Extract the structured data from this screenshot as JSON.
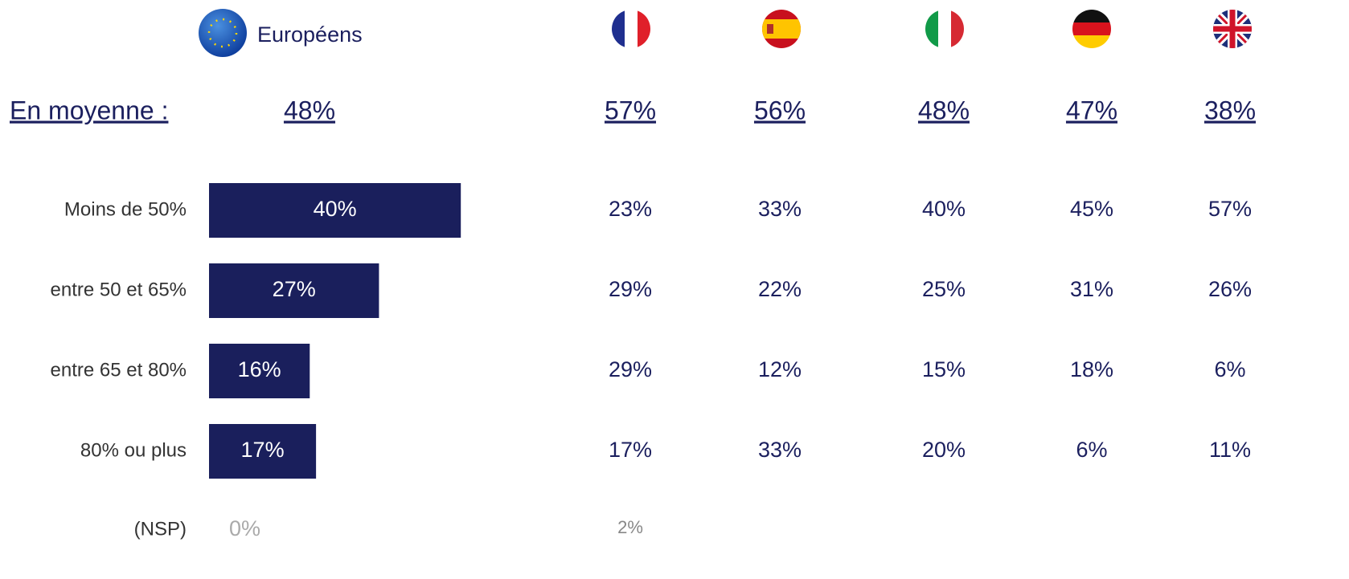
{
  "chart_data": {
    "type": "bar",
    "series_name": "Européens",
    "average_title": "En moyenne :",
    "average": 48,
    "average_label": "48%",
    "categories": [
      "Moins de 50%",
      "entre 50 et 65%",
      "entre 65 et 80%",
      "80% ou plus",
      "(NSP)"
    ],
    "values": [
      40,
      27,
      16,
      17,
      0
    ],
    "value_labels": [
      "40%",
      "27%",
      "16%",
      "17%",
      "0%"
    ],
    "color": "#1a1f5c"
  },
  "countries": [
    {
      "average": "57%",
      "rows": [
        "23%",
        "29%",
        "29%",
        "17%"
      ],
      "nsp": "2%"
    },
    {
      "average": "56%",
      "rows": [
        "33%",
        "22%",
        "12%",
        "33%"
      ]
    },
    {
      "average": "48%",
      "rows": [
        "40%",
        "25%",
        "15%",
        "20%"
      ]
    },
    {
      "average": "47%",
      "rows": [
        "45%",
        "31%",
        "18%",
        "6%"
      ]
    },
    {
      "average": "38%",
      "rows": [
        "57%",
        "26%",
        "6%",
        "11%"
      ]
    }
  ]
}
